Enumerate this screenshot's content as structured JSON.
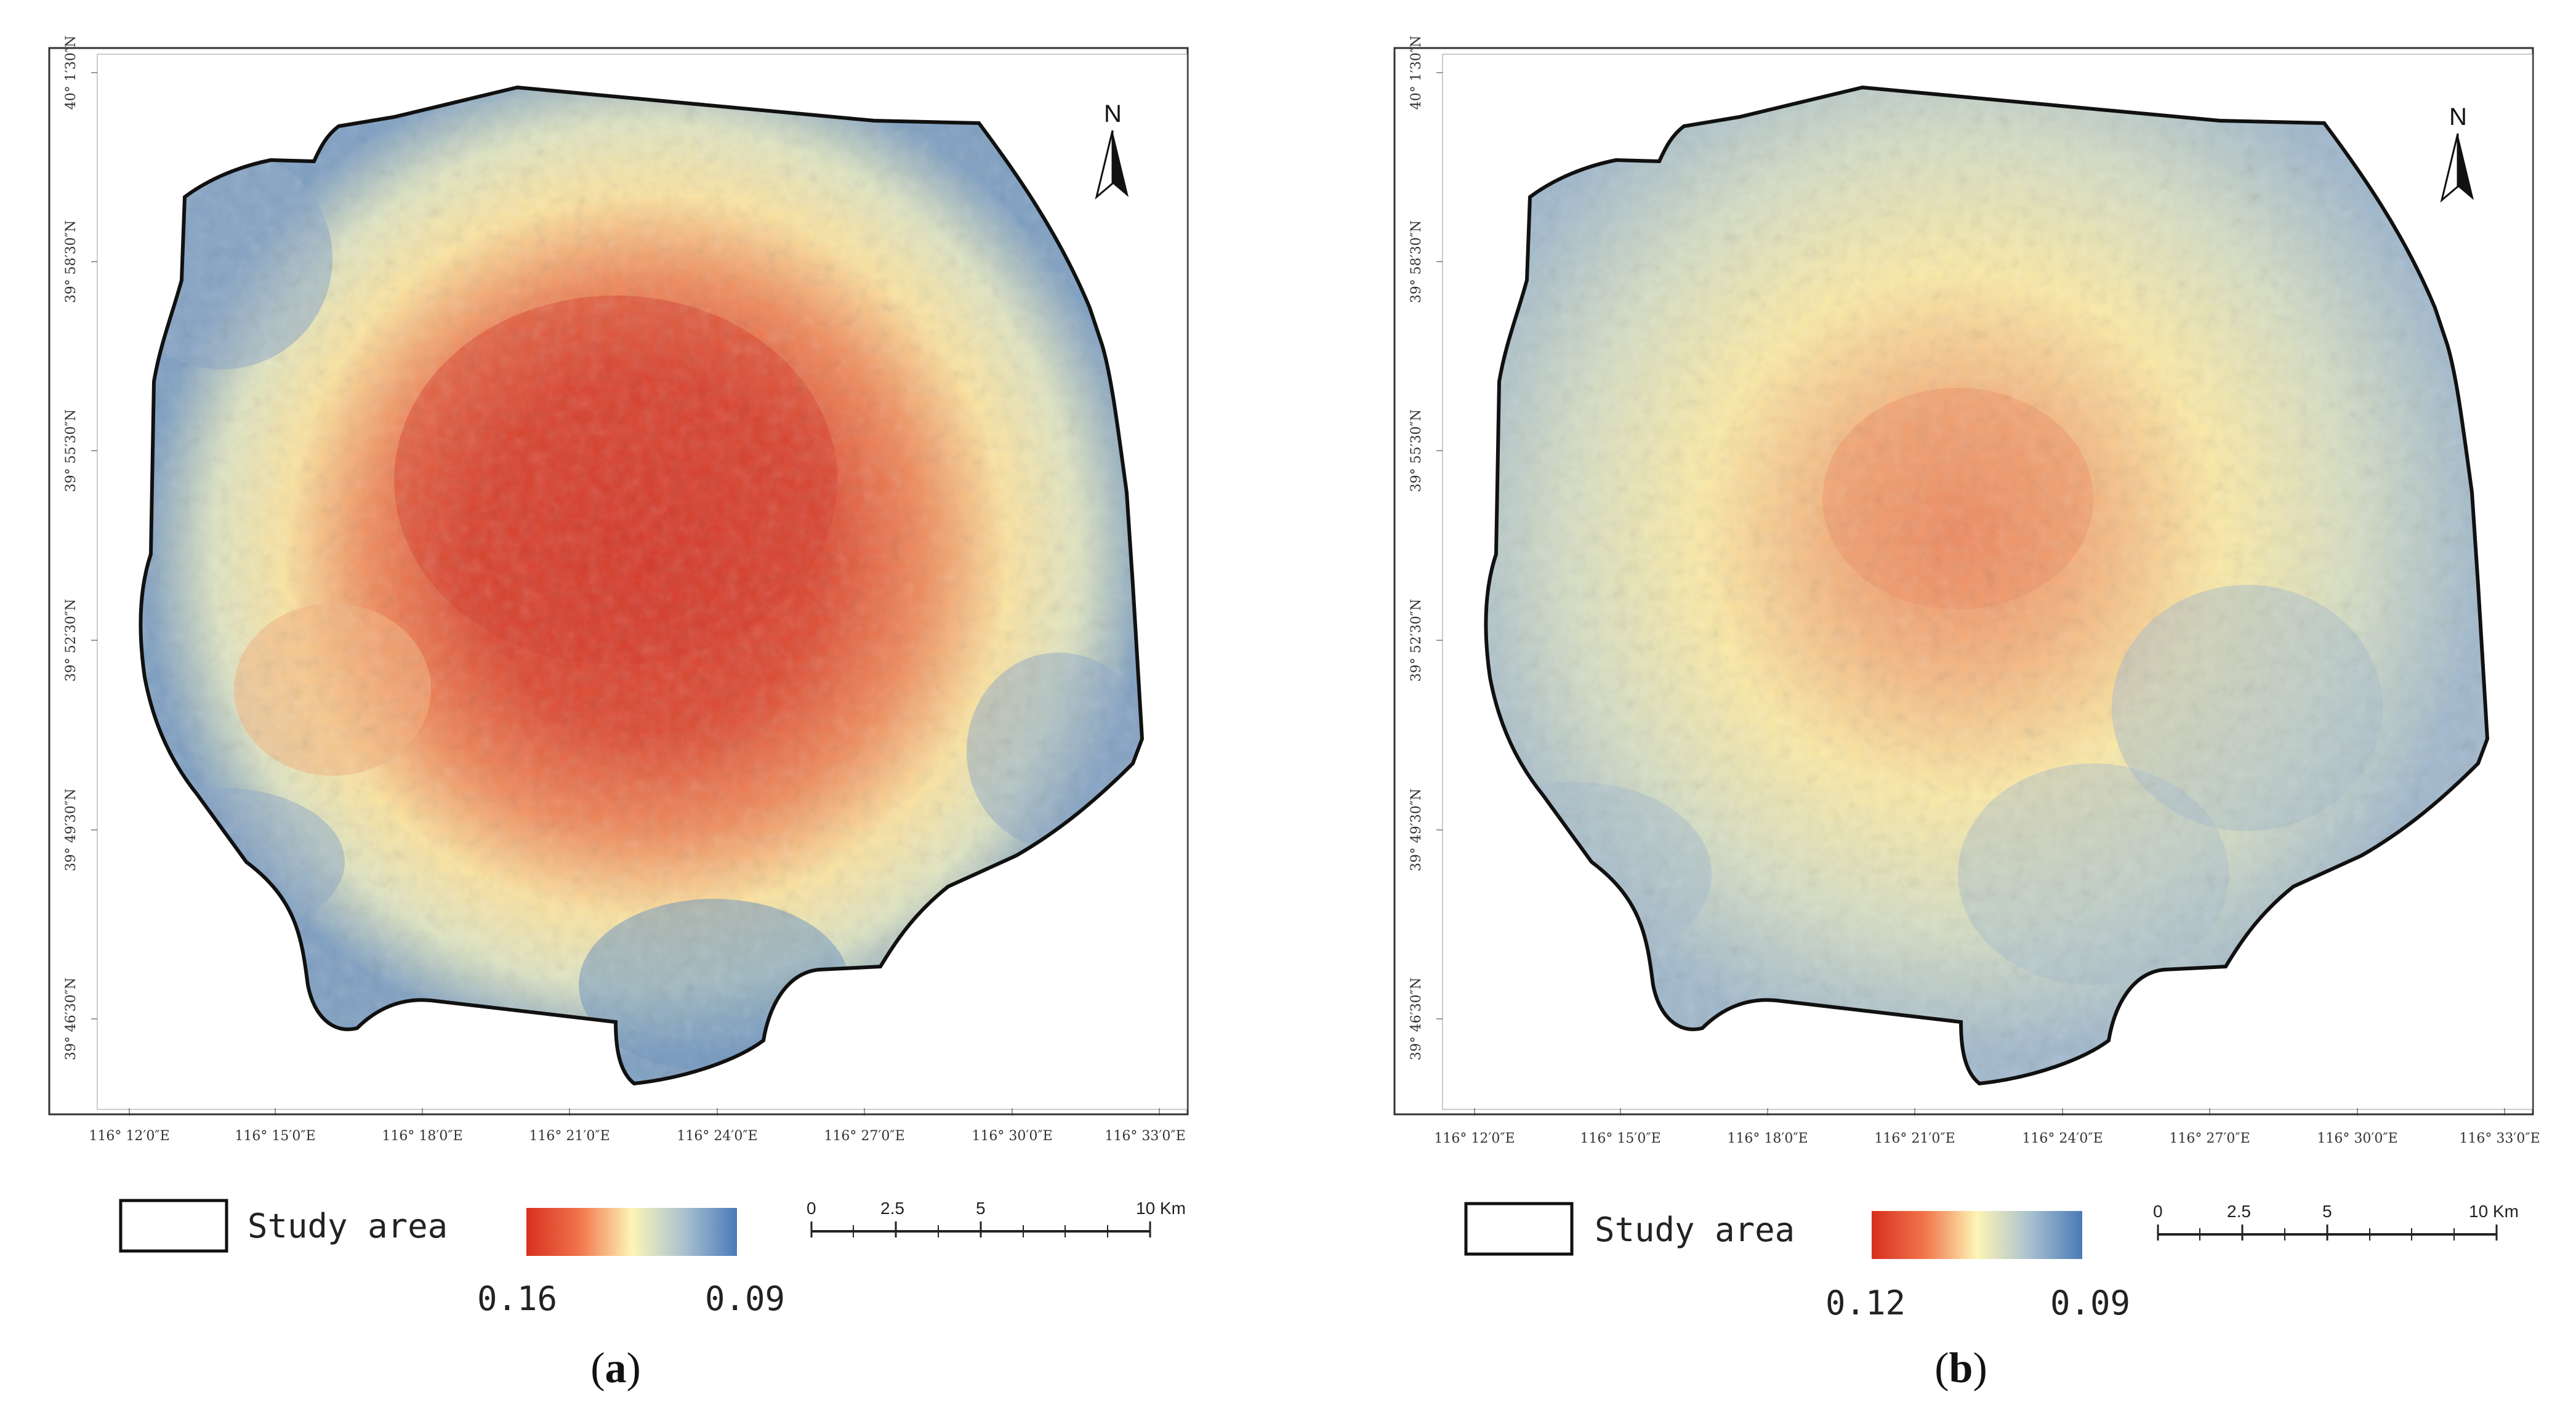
{
  "panels": [
    {
      "id": "a",
      "caption": "a",
      "lon_ticks": [
        "116° 12′0″E",
        "116° 15′0″E",
        "116° 18′0″E",
        "116° 21′0″E",
        "116° 24′0″E",
        "116° 27′0″E",
        "116° 30′0″E",
        "116° 33′0″E"
      ],
      "lat_ticks": [
        "40° 1′30″N",
        "39° 58′30″N",
        "39° 55′30″N",
        "39° 52′30″N",
        "39° 49′30″N",
        "39° 46′30″N"
      ],
      "north_label": "N",
      "legend": {
        "boundary_label": "Study area",
        "high_value": "0.16",
        "low_value": "0.09"
      },
      "scale_bar": {
        "labels": [
          "0",
          "2.5",
          "5",
          "10 Km"
        ]
      },
      "intensity": "high"
    },
    {
      "id": "b",
      "caption": "b",
      "lon_ticks": [
        "116° 12′0″E",
        "116° 15′0″E",
        "116° 18′0″E",
        "116° 21′0″E",
        "116° 24′0″E",
        "116° 27′0″E",
        "116° 30′0″E",
        "116° 33′0″E"
      ],
      "lat_ticks": [
        "40° 1′30″N",
        "39° 58′30″N",
        "39° 55′30″N",
        "39° 52′30″N",
        "39° 49′30″N",
        "39° 46′30″N"
      ],
      "north_label": "N",
      "legend": {
        "boundary_label": "Study area",
        "high_value": "0.12",
        "low_value": "0.09"
      },
      "scale_bar": {
        "labels": [
          "0",
          "2.5",
          "5",
          "10 Km"
        ]
      },
      "intensity": "low"
    }
  ],
  "colors": {
    "high": "#d7301f",
    "mid": "#fdf5b6",
    "low": "#4a7ab8",
    "frame": "#333333"
  }
}
